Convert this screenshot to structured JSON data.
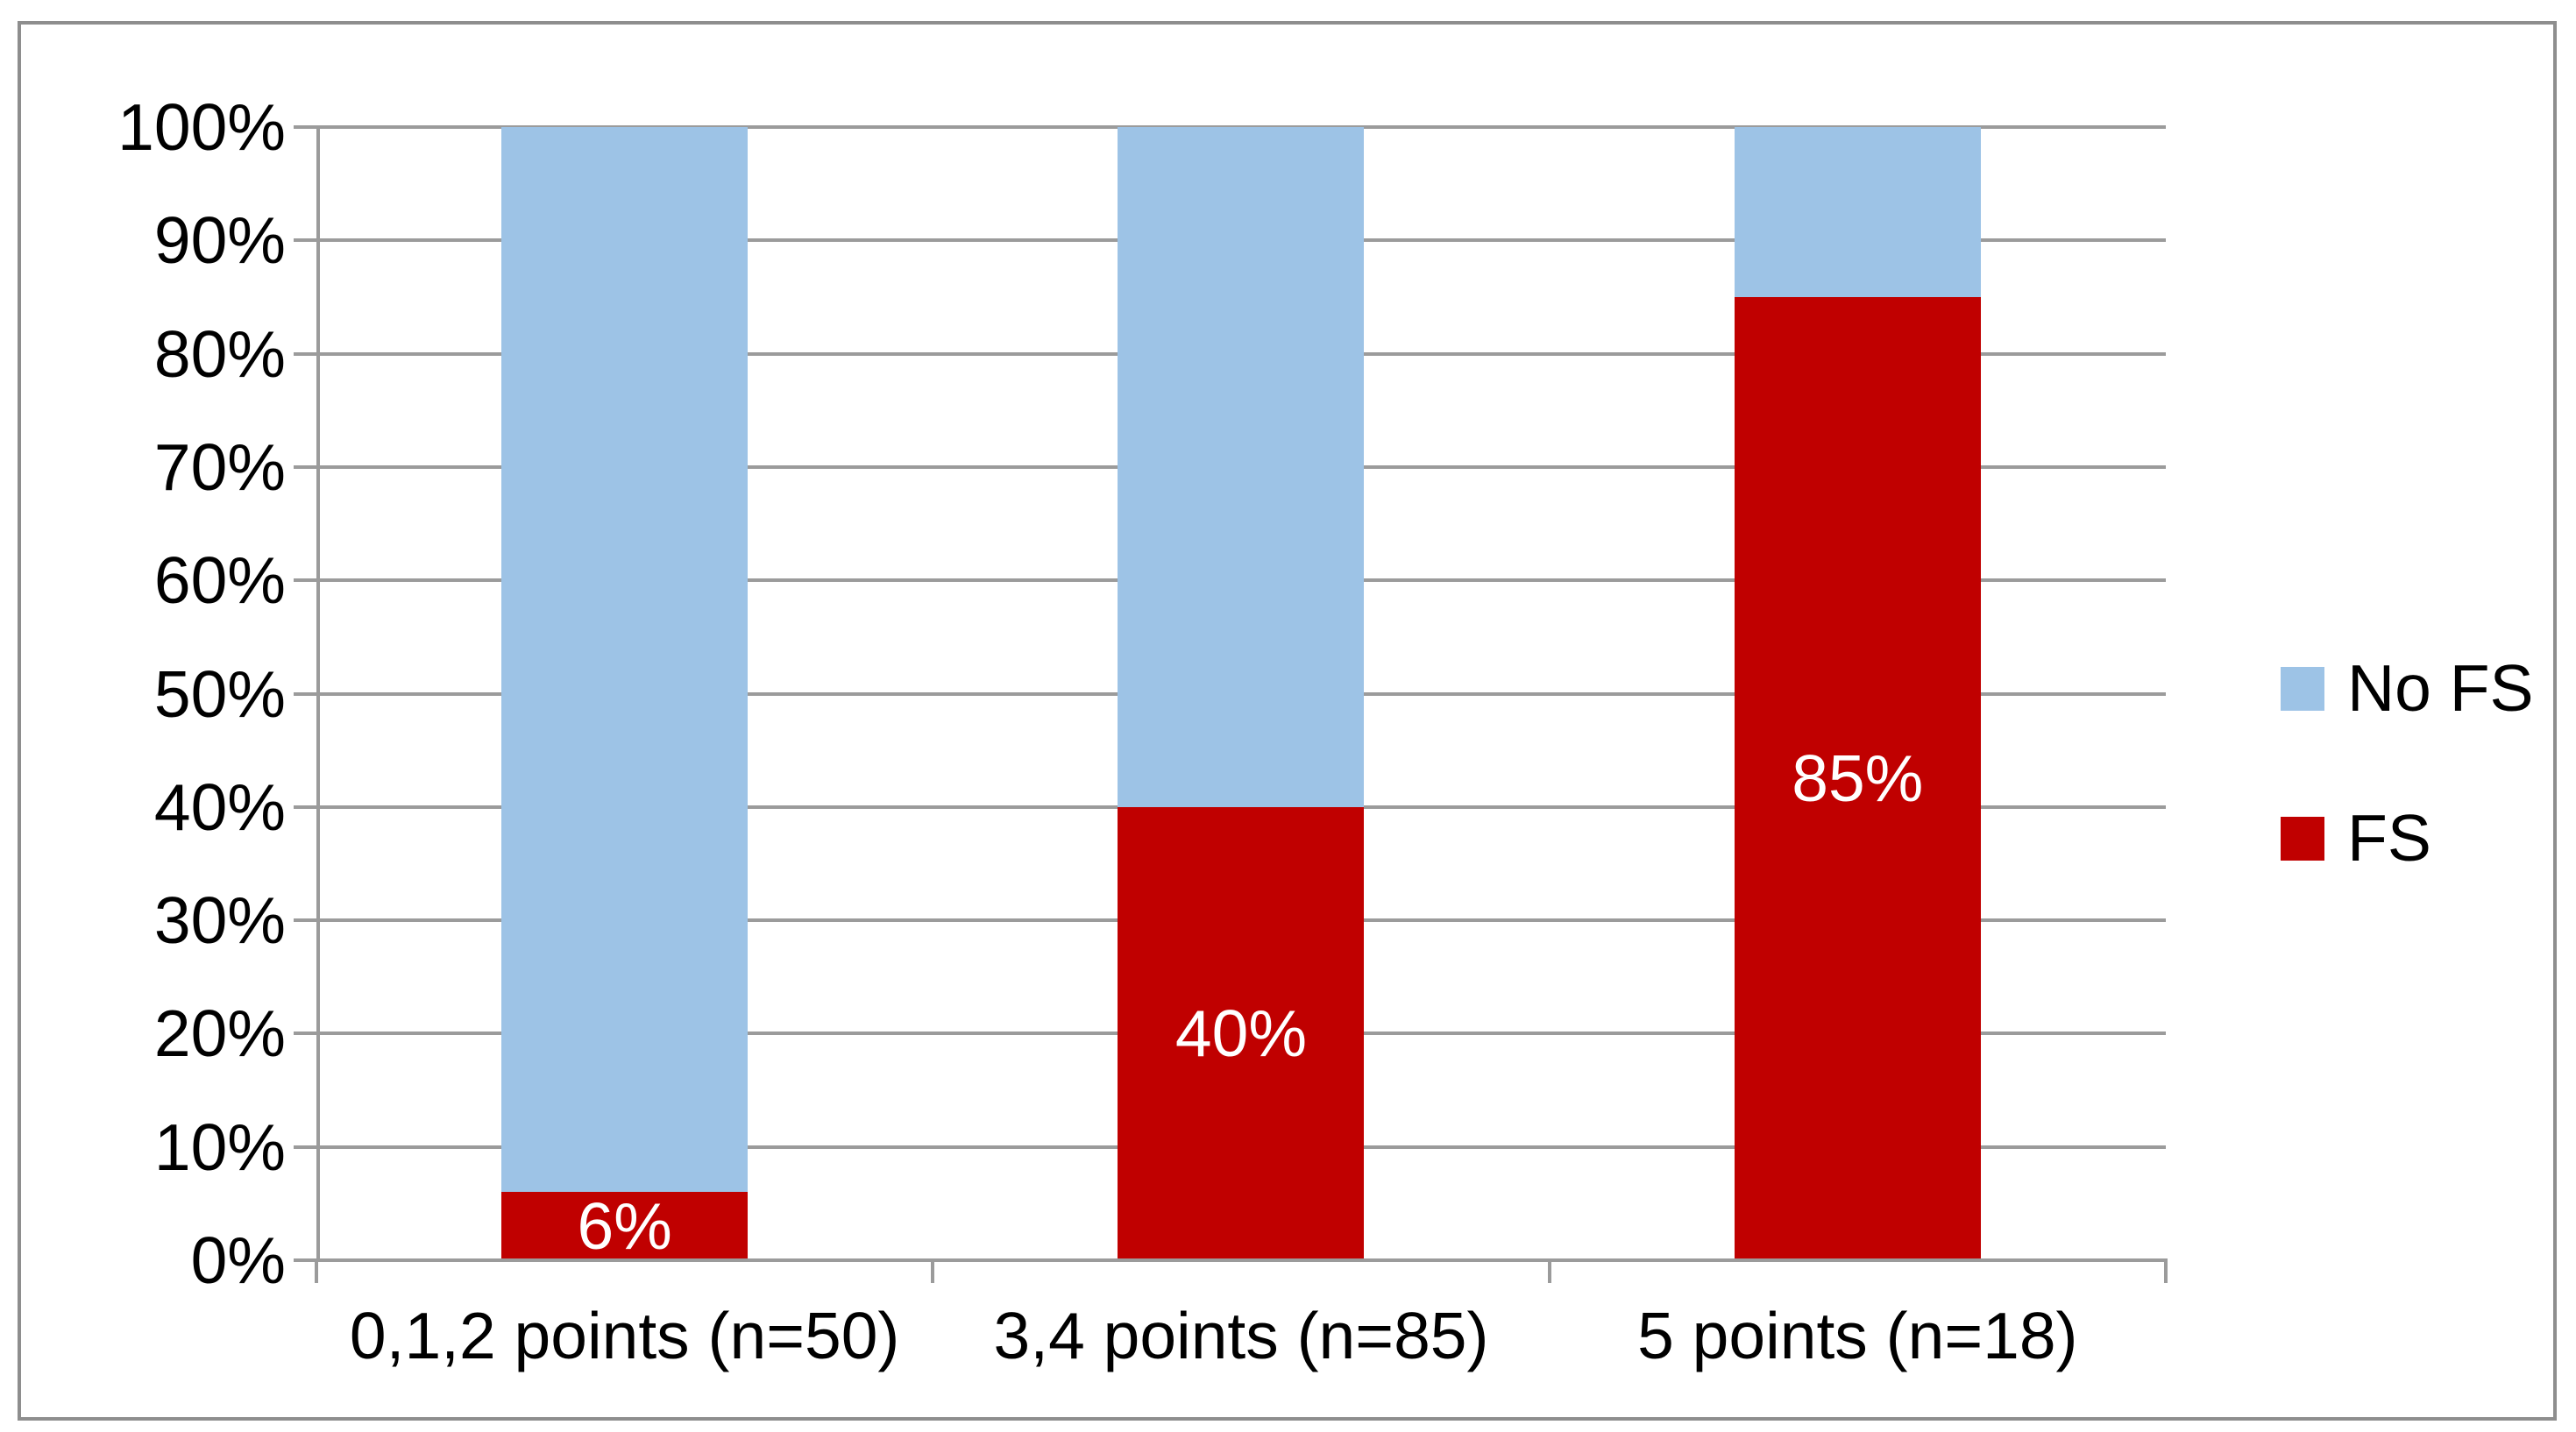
{
  "chart_data": {
    "type": "bar",
    "subtype": "stacked-100-percent",
    "title": "",
    "xlabel": "",
    "ylabel": "",
    "categories": [
      "0,1,2 points (n=50)",
      "3,4 points (n=85)",
      "5 points (n=18)"
    ],
    "series": [
      {
        "name": "FS",
        "color": "#c00000",
        "values": [
          6,
          40,
          85
        ],
        "data_labels": [
          "6%",
          "40%",
          "85%"
        ],
        "data_label_color": "#ffffff"
      },
      {
        "name": "No FS",
        "color": "#9dc3e6",
        "values": [
          94,
          60,
          15
        ],
        "data_labels": [
          "",
          "",
          ""
        ],
        "data_label_color": "#ffffff"
      }
    ],
    "stack_order_bottom_to_top": [
      "FS",
      "No FS"
    ],
    "y_axis": {
      "min": 0,
      "max": 100,
      "step": 10,
      "tick_labels": [
        "0%",
        "10%",
        "20%",
        "30%",
        "40%",
        "50%",
        "60%",
        "70%",
        "80%",
        "90%",
        "100%"
      ]
    },
    "grid": "horizontal",
    "legend": {
      "position": "right",
      "entries": [
        {
          "label": "No FS",
          "color": "#9dc3e6"
        },
        {
          "label": "FS",
          "color": "#c00000"
        }
      ]
    }
  },
  "style": {
    "background": "#ffffff",
    "frame_border_color": "#8e8e8e",
    "grid_color": "#9b9b9b",
    "axis_color": "#9b9b9b",
    "text_color": "#000000"
  }
}
